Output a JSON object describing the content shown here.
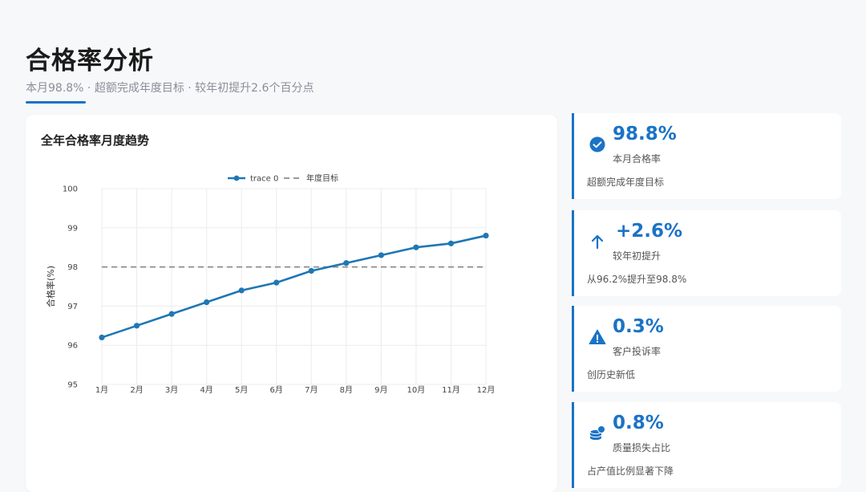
{
  "header": {
    "title": "合格率分析",
    "subtitle": "本月98.8% · 超额完成年度目标 · 较年初提升2.6个百分点"
  },
  "chart_card": {
    "title": "全年合格率月度趋势"
  },
  "chart_data": {
    "type": "line",
    "categories": [
      "1月",
      "2月",
      "3月",
      "4月",
      "5月",
      "6月",
      "7月",
      "8月",
      "9月",
      "10月",
      "11月",
      "12月"
    ],
    "series": [
      {
        "name": "trace 0",
        "values": [
          96.2,
          96.5,
          96.8,
          97.1,
          97.4,
          97.6,
          97.9,
          98.1,
          98.3,
          98.5,
          98.6,
          98.8
        ]
      },
      {
        "name": "年度目标",
        "values": [
          98,
          98,
          98,
          98,
          98,
          98,
          98,
          98,
          98,
          98,
          98,
          98
        ],
        "style": "dashed"
      }
    ],
    "ylabel": "合格率(%)",
    "xlabel": "",
    "ylim": [
      95,
      100
    ],
    "yticks": [
      "95",
      "96",
      "97",
      "98",
      "99",
      "100"
    ],
    "grid": true,
    "legend_position": "top",
    "colors": {
      "line": "#1f77b4",
      "target": "#8c8c8c"
    }
  },
  "stats": [
    {
      "value": "98.8%",
      "label": "本月合格率",
      "desc": "超额完成年度目标",
      "icon": "check-circle-icon"
    },
    {
      "value": "+2.6%",
      "label": "较年初提升",
      "desc": "从96.2%提升至98.8%",
      "icon": "arrow-up-icon"
    },
    {
      "value": "0.3%",
      "label": "客户投诉率",
      "desc": "创历史新低",
      "icon": "warning-icon"
    },
    {
      "value": "0.8%",
      "label": "质量损失占比",
      "desc": "占产值比例显著下降",
      "icon": "coins-icon"
    }
  ],
  "accent_color": "#1a73c6"
}
